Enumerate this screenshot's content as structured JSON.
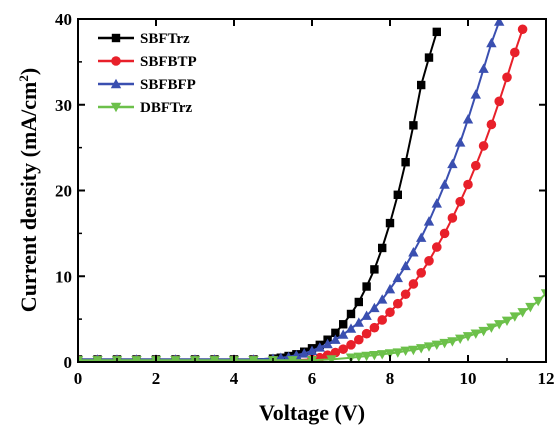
{
  "chart_data": {
    "type": "line",
    "xlabel": "Voltage (V)",
    "ylabel_main": "Current density (mA/cm",
    "ylabel_sup": "2",
    "ylabel_end": ")",
    "xlim": [
      0,
      12
    ],
    "ylim": [
      0,
      40
    ],
    "xticks": [
      0,
      2,
      4,
      6,
      8,
      10,
      12
    ],
    "yticks": [
      0,
      10,
      20,
      30,
      40
    ],
    "legend_position": "top-left",
    "grid": false,
    "series": [
      {
        "name": "SBFTrz",
        "color": "#000000",
        "marker": "square",
        "x": [
          0,
          0.5,
          1,
          1.5,
          2,
          2.5,
          3,
          3.5,
          4,
          4.5,
          5,
          5.2,
          5.4,
          5.6,
          5.8,
          6,
          6.2,
          6.4,
          6.6,
          6.8,
          7,
          7.2,
          7.4,
          7.6,
          7.8,
          8,
          8.2,
          8.4,
          8.6,
          8.8,
          9,
          9.2
        ],
        "y": [
          0.3,
          0.3,
          0.3,
          0.3,
          0.3,
          0.3,
          0.3,
          0.3,
          0.3,
          0.3,
          0.4,
          0.5,
          0.7,
          0.9,
          1.2,
          1.6,
          2.0,
          2.6,
          3.4,
          4.4,
          5.6,
          7.0,
          8.8,
          10.8,
          13.3,
          16.2,
          19.5,
          23.3,
          27.6,
          32.3,
          35.5,
          38.5
        ]
      },
      {
        "name": "SBFBTP",
        "color": "#e8202a",
        "marker": "circle",
        "x": [
          0,
          0.5,
          1,
          1.5,
          2,
          2.5,
          3,
          3.5,
          4,
          4.5,
          5,
          5.5,
          6,
          6.2,
          6.4,
          6.6,
          6.8,
          7,
          7.2,
          7.4,
          7.6,
          7.8,
          8,
          8.2,
          8.4,
          8.6,
          8.8,
          9,
          9.2,
          9.4,
          9.6,
          9.8,
          10,
          10.2,
          10.4,
          10.6,
          10.8,
          11,
          11.2,
          11.4
        ],
        "y": [
          0.2,
          0.2,
          0.2,
          0.2,
          0.2,
          0.2,
          0.2,
          0.2,
          0.2,
          0.2,
          0.2,
          0.2,
          0.3,
          0.5,
          0.8,
          1.1,
          1.5,
          2.0,
          2.6,
          3.3,
          4.0,
          4.9,
          5.8,
          6.8,
          7.9,
          9.1,
          10.4,
          11.8,
          13.4,
          15.0,
          16.8,
          18.7,
          20.7,
          22.9,
          25.2,
          27.7,
          30.4,
          33.2,
          36.1,
          38.8
        ]
      },
      {
        "name": "SBFBFP",
        "color": "#3a4fb0",
        "marker": "triangle-up",
        "x": [
          0,
          0.5,
          1,
          1.5,
          2,
          2.5,
          3,
          3.5,
          4,
          4.5,
          5,
          5.2,
          5.4,
          5.6,
          5.8,
          6,
          6.2,
          6.4,
          6.6,
          6.8,
          7,
          7.2,
          7.4,
          7.6,
          7.8,
          8,
          8.2,
          8.4,
          8.6,
          8.8,
          9,
          9.2,
          9.4,
          9.6,
          9.8,
          10,
          10.2,
          10.4,
          10.6,
          10.8
        ],
        "y": [
          0.3,
          0.3,
          0.3,
          0.3,
          0.3,
          0.3,
          0.3,
          0.3,
          0.3,
          0.3,
          0.4,
          0.5,
          0.6,
          0.8,
          1.0,
          1.3,
          1.7,
          2.1,
          2.6,
          3.2,
          3.9,
          4.6,
          5.4,
          6.3,
          7.3,
          8.5,
          9.8,
          11.2,
          12.8,
          14.5,
          16.4,
          18.5,
          20.7,
          23.1,
          25.6,
          28.3,
          31.2,
          34.2,
          37.2,
          39.7
        ]
      },
      {
        "name": "DBFTrz",
        "color": "#6cc04a",
        "marker": "triangle-down",
        "x": [
          0,
          0.5,
          1,
          1.5,
          2,
          2.5,
          3,
          3.5,
          4,
          4.5,
          5,
          5.5,
          6,
          6.5,
          7,
          7.2,
          7.4,
          7.6,
          7.8,
          8,
          8.2,
          8.4,
          8.6,
          8.8,
          9,
          9.2,
          9.4,
          9.6,
          9.8,
          10,
          10.2,
          10.4,
          10.6,
          10.8,
          11,
          11.2,
          11.4,
          11.6,
          11.8,
          12
        ],
        "y": [
          0.2,
          0.2,
          0.2,
          0.2,
          0.2,
          0.2,
          0.2,
          0.2,
          0.2,
          0.2,
          0.2,
          0.2,
          0.2,
          0.3,
          0.5,
          0.6,
          0.7,
          0.8,
          0.9,
          1.0,
          1.1,
          1.3,
          1.4,
          1.6,
          1.8,
          2.0,
          2.2,
          2.4,
          2.7,
          3.0,
          3.3,
          3.6,
          4.0,
          4.4,
          4.8,
          5.3,
          5.8,
          6.4,
          7.1,
          8.0
        ]
      }
    ]
  }
}
